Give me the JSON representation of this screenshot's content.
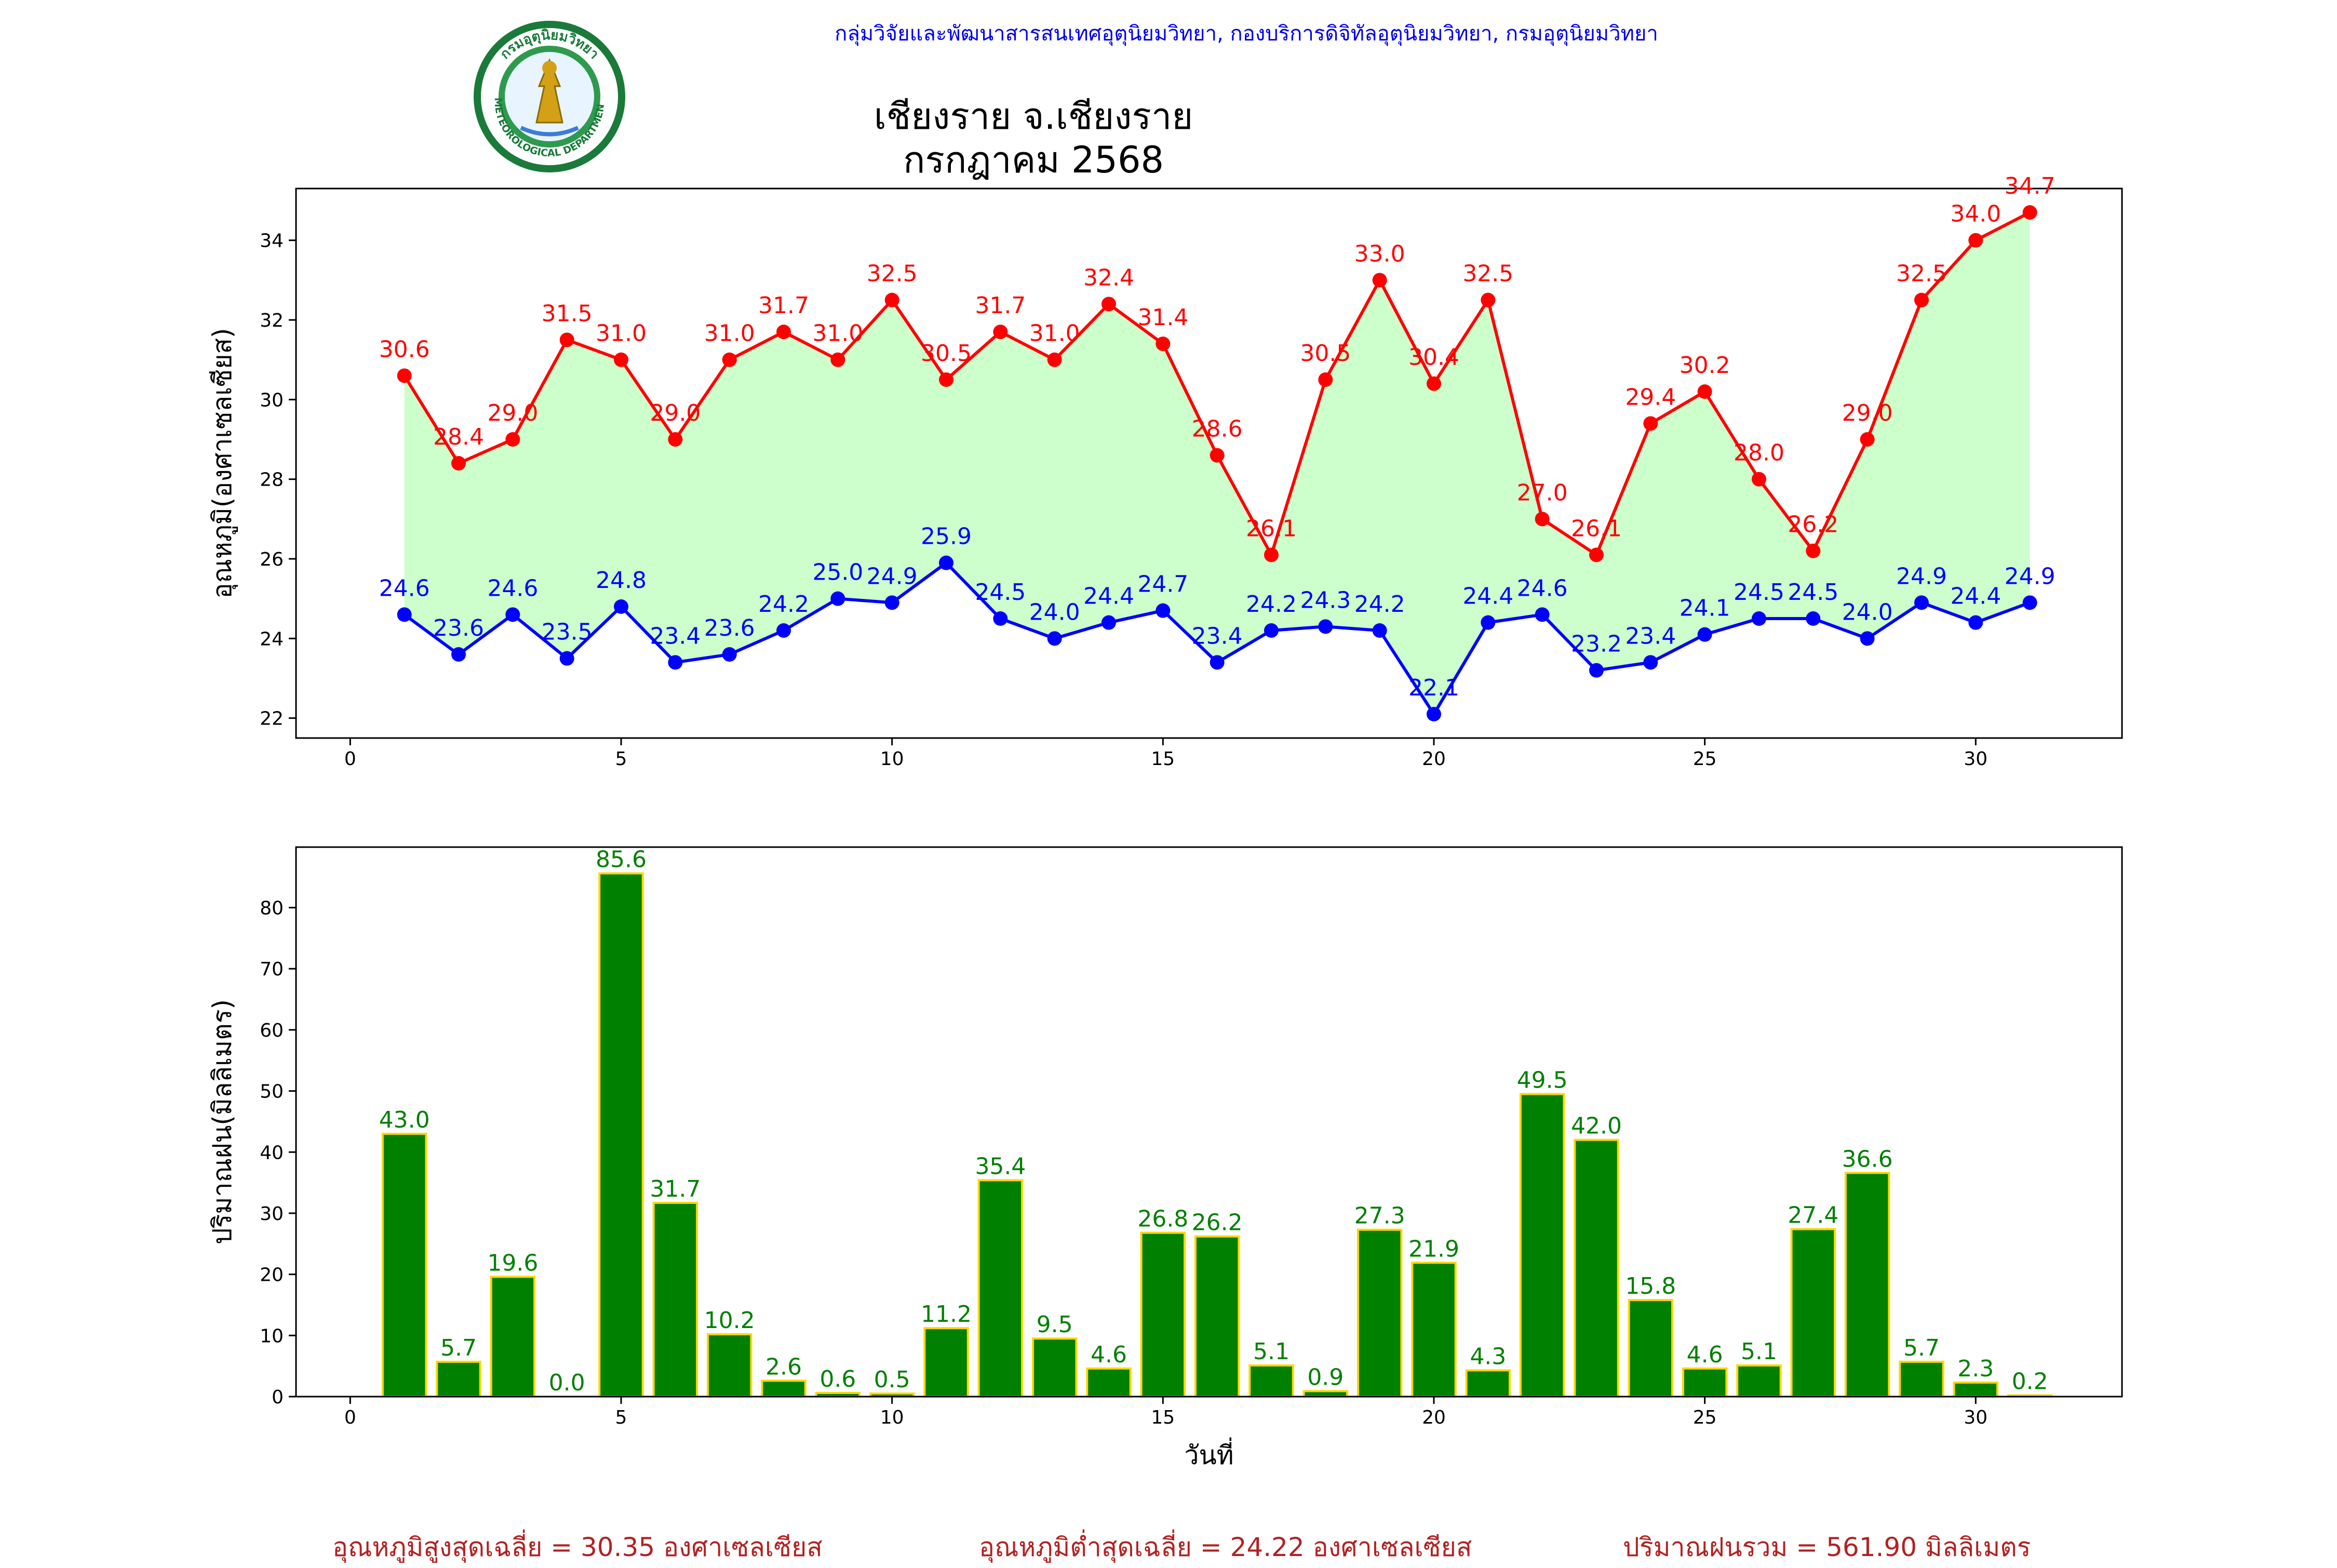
{
  "header": {
    "department_line": "กลุ่มวิจัยและพัฒนาสารสนเทศอุตุนิยมวิทยา, กองบริการดิจิทัลอุตุนิยมวิทยา, กรมอุตุนิยมวิทยา"
  },
  "logo": {
    "top_text": "กรมอุตุนิยมวิทยา",
    "bottom_text": "METEOROLOGICAL DEPARTMENT"
  },
  "title": {
    "line1": "เชียงราย จ.เชียงราย",
    "line2": "กรกฎาคม 2568"
  },
  "summary": {
    "avg_max": "อุณหภูมิสูงสุดเฉลี่ย = 30.35 องศาเซลเซียส",
    "avg_min": "อุณหภูมิต่ำสุดเฉลี่ย = 24.22 องศาเซลเซียส",
    "total_rain": "ปริมาณฝนรวม = 561.90 มิลลิเมตร"
  },
  "colors": {
    "max": "#ff0000",
    "min": "#0000ff",
    "fill": "#ccffcc",
    "rain_bar": "#008000",
    "rain_edge": "#ffd700",
    "rain_label": "#008000",
    "summary": "#b22222",
    "header": "#0000ee"
  },
  "chart_data": [
    {
      "type": "line",
      "ylabel": "อุณหภูมิ(องศาเซลเซียส)",
      "xlabel": "",
      "xlim": [
        -1,
        32.7
      ],
      "ylim": [
        21.5,
        35.3
      ],
      "x_ticks": [
        0,
        5,
        10,
        15,
        20,
        25,
        30
      ],
      "y_ticks": [
        22,
        24,
        26,
        28,
        30,
        32,
        34
      ],
      "x": [
        1,
        2,
        3,
        4,
        5,
        6,
        7,
        8,
        9,
        10,
        11,
        12,
        13,
        14,
        15,
        16,
        17,
        18,
        19,
        20,
        21,
        22,
        23,
        24,
        25,
        26,
        27,
        28,
        29,
        30,
        31
      ],
      "series": [
        {
          "values": [
            30.6,
            28.4,
            29.0,
            31.5,
            31.0,
            29.0,
            31.0,
            31.7,
            31.0,
            32.5,
            30.5,
            31.7,
            31.0,
            32.4,
            31.4,
            28.6,
            26.1,
            30.5,
            33.0,
            30.4,
            32.5,
            27.0,
            26.1,
            29.4,
            30.2,
            28.0,
            26.2,
            29.0,
            32.5,
            34.0,
            34.7
          ]
        },
        {
          "values": [
            24.6,
            23.6,
            24.6,
            23.5,
            24.8,
            23.4,
            23.6,
            24.2,
            25.0,
            24.9,
            25.9,
            24.5,
            24.0,
            24.4,
            24.7,
            23.4,
            24.2,
            24.3,
            24.2,
            22.1,
            24.4,
            24.6,
            23.2,
            23.4,
            24.1,
            24.5,
            24.5,
            24.0,
            24.9,
            24.4,
            24.9
          ]
        }
      ],
      "fill_between": true,
      "grid": false
    },
    {
      "type": "bar",
      "ylabel": "ปริมาณฝน(มิลลิเมตร)",
      "xlabel": "วันที่",
      "xlim": [
        -1,
        32.7
      ],
      "ylim": [
        0,
        89.9
      ],
      "x_ticks": [
        0,
        5,
        10,
        15,
        20,
        25,
        30
      ],
      "y_ticks": [
        0,
        10,
        20,
        30,
        40,
        50,
        60,
        70,
        80
      ],
      "x": [
        1,
        2,
        3,
        4,
        5,
        6,
        7,
        8,
        9,
        10,
        11,
        12,
        13,
        14,
        15,
        16,
        17,
        18,
        19,
        20,
        21,
        22,
        23,
        24,
        25,
        26,
        27,
        28,
        29,
        30,
        31
      ],
      "values": [
        43.0,
        5.7,
        19.6,
        0.0,
        85.6,
        31.7,
        10.2,
        2.6,
        0.6,
        0.5,
        11.2,
        35.4,
        9.5,
        4.6,
        26.8,
        26.2,
        5.1,
        0.9,
        27.3,
        21.9,
        4.3,
        49.5,
        42.0,
        15.8,
        4.6,
        5.1,
        27.4,
        36.6,
        5.7,
        2.3,
        0.2
      ],
      "grid": false
    }
  ]
}
